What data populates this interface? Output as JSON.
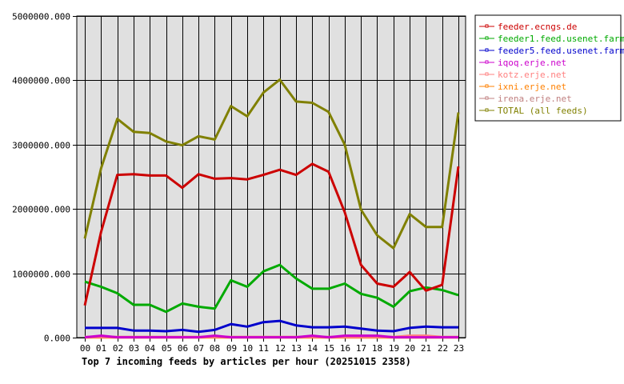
{
  "chart_data": {
    "type": "line",
    "title": "Top 7 incoming feeds by articles per hour (20251015 2358)",
    "xlabel": "",
    "ylabel": "",
    "x": [
      "00",
      "01",
      "02",
      "03",
      "04",
      "05",
      "06",
      "07",
      "08",
      "09",
      "10",
      "11",
      "12",
      "13",
      "14",
      "15",
      "16",
      "17",
      "18",
      "19",
      "20",
      "21",
      "22",
      "23"
    ],
    "ylim": [
      0,
      5000000
    ],
    "yticks": [
      0,
      1000000,
      2000000,
      3000000,
      4000000,
      5000000
    ],
    "ytick_labels": [
      "0.000",
      "1000000.000",
      "2000000.000",
      "3000000.000",
      "4000000.000",
      "5000000.000"
    ],
    "grid": true,
    "legend_position": "top-right",
    "series": [
      {
        "name": "feeder.ecngs.de",
        "color": "#cc0000",
        "values": [
          500000,
          1640000,
          2530000,
          2540000,
          2520000,
          2520000,
          2330000,
          2540000,
          2470000,
          2480000,
          2460000,
          2530000,
          2610000,
          2530000,
          2700000,
          2580000,
          1950000,
          1130000,
          840000,
          790000,
          1020000,
          730000,
          820000,
          2660000
        ]
      },
      {
        "name": "feeder1.feed.usenet.farm",
        "color": "#00aa00",
        "values": [
          870000,
          790000,
          690000,
          510000,
          510000,
          400000,
          530000,
          480000,
          450000,
          890000,
          790000,
          1030000,
          1130000,
          920000,
          760000,
          760000,
          840000,
          680000,
          620000,
          480000,
          720000,
          780000,
          740000,
          660000
        ]
      },
      {
        "name": "feeder5.feed.usenet.farm",
        "color": "#0000cc",
        "values": [
          150000,
          150000,
          150000,
          110000,
          110000,
          100000,
          120000,
          90000,
          120000,
          210000,
          170000,
          240000,
          260000,
          190000,
          160000,
          160000,
          170000,
          140000,
          110000,
          100000,
          150000,
          170000,
          160000,
          160000
        ]
      },
      {
        "name": "iqoq.erje.net",
        "color": "#cc00cc",
        "values": [
          5000,
          30000,
          5000,
          5000,
          5000,
          5000,
          5000,
          5000,
          30000,
          5000,
          5000,
          5000,
          5000,
          5000,
          30000,
          5000,
          30000,
          30000,
          30000,
          5000,
          5000,
          5000,
          5000,
          5000
        ]
      },
      {
        "name": "kotz.erje.net",
        "color": "#ff8080",
        "values": [
          10000,
          10000,
          10000,
          10000,
          10000,
          10000,
          10000,
          10000,
          10000,
          10000,
          10000,
          10000,
          10000,
          10000,
          10000,
          10000,
          10000,
          10000,
          10000,
          10000,
          30000,
          30000,
          10000,
          10000
        ]
      },
      {
        "name": "ixni.erje.net",
        "color": "#ff8000",
        "values": [
          2000,
          2000,
          2000,
          2000,
          2000,
          2000,
          2000,
          2000,
          2000,
          2000,
          2000,
          2000,
          2000,
          2000,
          2000,
          2000,
          2000,
          2000,
          2000,
          2000,
          2000,
          2000,
          2000,
          2000
        ]
      },
      {
        "name": "irena.erje.net",
        "color": "#c08080",
        "values": [
          8000,
          8000,
          8000,
          8000,
          8000,
          8000,
          8000,
          8000,
          8000,
          8000,
          8000,
          8000,
          8000,
          8000,
          8000,
          8000,
          8000,
          8000,
          8000,
          8000,
          8000,
          8000,
          8000,
          8000
        ]
      },
      {
        "name": "TOTAL (all feeds)",
        "color": "#808000",
        "values": [
          1540000,
          2630000,
          3400000,
          3200000,
          3180000,
          3050000,
          2990000,
          3130000,
          3080000,
          3600000,
          3440000,
          3810000,
          4010000,
          3670000,
          3650000,
          3510000,
          3000000,
          1990000,
          1590000,
          1390000,
          1920000,
          1720000,
          1720000,
          3500000
        ]
      }
    ]
  }
}
